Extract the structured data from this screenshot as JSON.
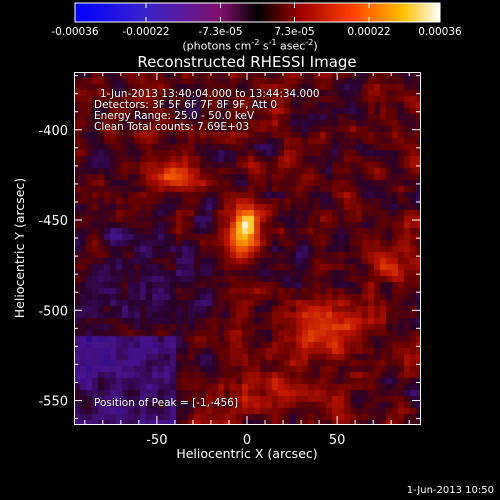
{
  "colorbar": {
    "tick_labels": [
      "-0.00036",
      "-0.00022",
      "-7.3e-05",
      "7.3e-05",
      "0.00022",
      "0.00036"
    ],
    "min": -0.00036,
    "max": 0.00036,
    "unit_prefix": "(photons cm",
    "unit_exp1": "-2",
    "unit_mid": " s",
    "unit_exp2": "-1",
    "unit_mid2": " asec",
    "unit_exp3": "-2",
    "unit_suffix": ")"
  },
  "chart_data": {
    "type": "heatmap",
    "title": "Reconstructed RHESSI Image",
    "xlabel": "Heliocentric X (arcsec)",
    "ylabel": "Heliocentric Y (arcsec)",
    "xlim": [
      -96,
      96
    ],
    "ylim": [
      -563,
      -368
    ],
    "xticks": [
      -50,
      0,
      50
    ],
    "xtick_labels": [
      "-50",
      "0",
      "50"
    ],
    "yticks": [
      -400,
      -450,
      -500,
      -550
    ],
    "ytick_labels": [
      "-400",
      "-450",
      "-500",
      "-550"
    ],
    "peak": {
      "x": -1,
      "y": -456
    },
    "sources": [
      {
        "x": -1,
        "y": -456,
        "amp": 1.0,
        "sx": 6,
        "sy": 9
      },
      {
        "x": -40,
        "y": -425,
        "amp": 0.55,
        "sx": 9,
        "sy": 6
      },
      {
        "x": 80,
        "y": -475,
        "amp": 0.35,
        "sx": 6,
        "sy": 10
      },
      {
        "x": 45,
        "y": -510,
        "amp": 0.4,
        "sx": 14,
        "sy": 10
      },
      {
        "x": 20,
        "y": -545,
        "amp": 0.35,
        "sx": 18,
        "sy": 8
      }
    ]
  },
  "info": {
    "time_range": "1-Jun-2013 13:40:04.000 to 13:44:34.000",
    "detectors": "Detectors: 3F 5F 6F 7F 8F 9F, Att 0",
    "energy_range": "Energy Range: 25.0 - 50.0 keV",
    "clean": "Clean     Total counts: 7.69E+03",
    "peak_position": "Position of Peak = [-1,-456]"
  },
  "footer": {
    "timestamp": "1-Jun-2013 10:50"
  }
}
